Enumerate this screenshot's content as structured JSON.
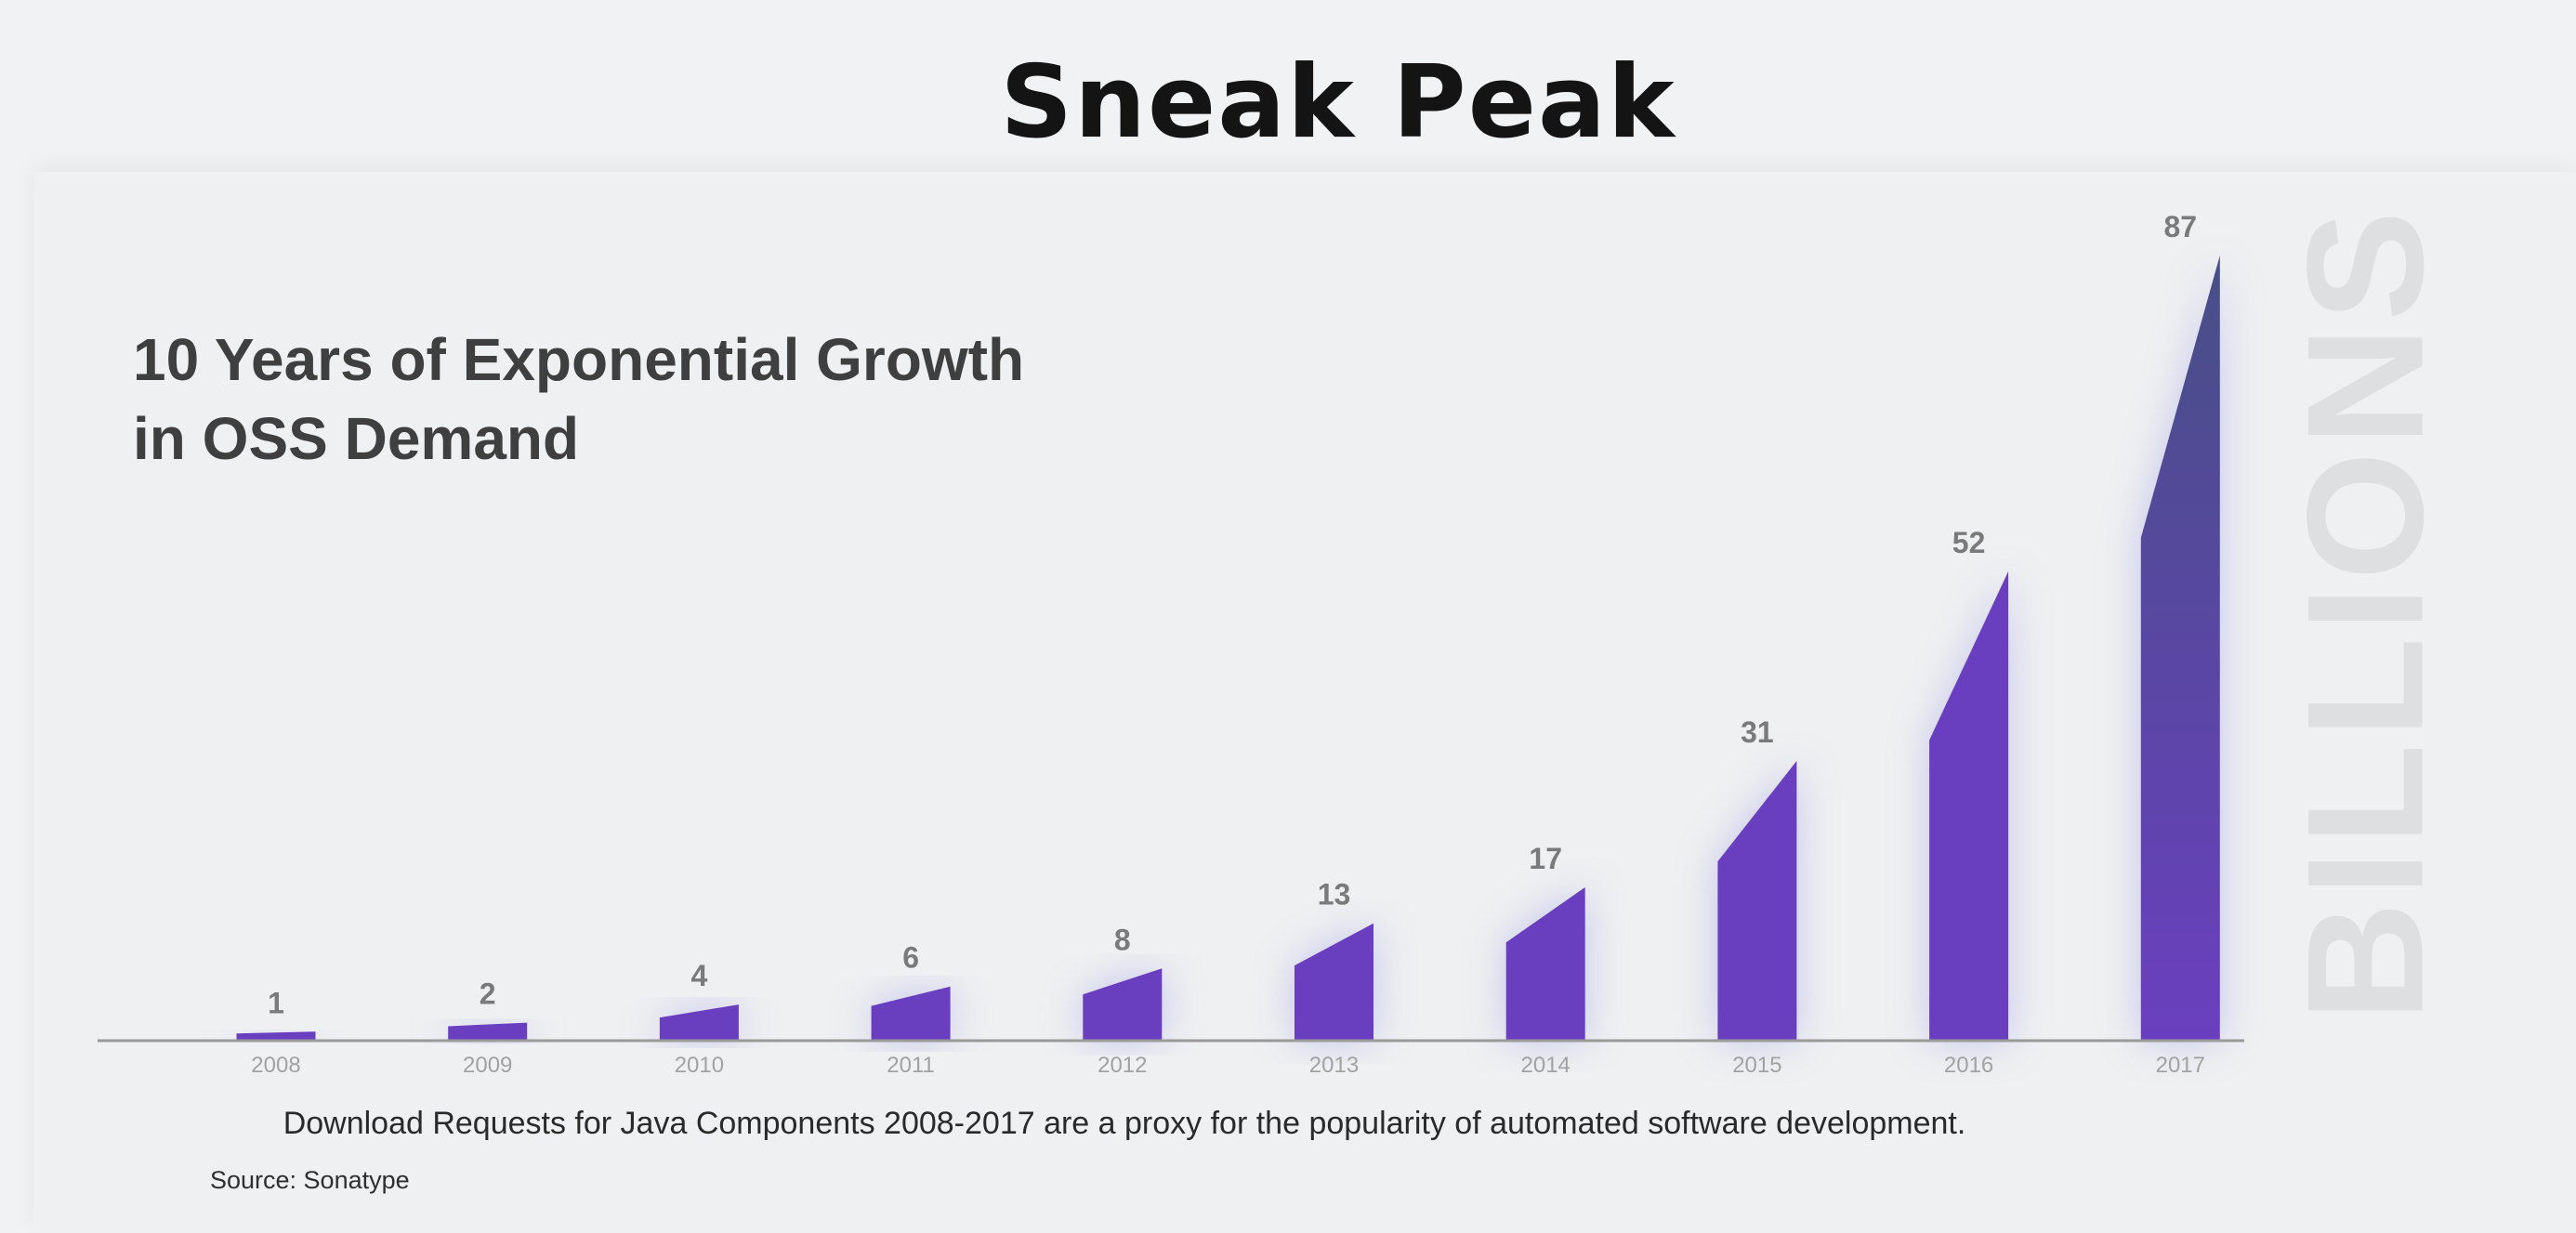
{
  "slide": {
    "title": "Sneak Peak"
  },
  "chart_data": {
    "type": "bar",
    "title": "10 Years of Exponential Growth in OSS Demand",
    "title_lines": [
      "10 Years of Exponential Growth",
      "in OSS Demand"
    ],
    "unit_label": "BILLIONS",
    "categories": [
      "2008",
      "2009",
      "2010",
      "2011",
      "2012",
      "2013",
      "2014",
      "2015",
      "2016",
      "2017"
    ],
    "values": [
      1,
      2,
      4,
      6,
      8,
      13,
      17,
      31,
      52,
      87
    ],
    "ylim": [
      0,
      87
    ],
    "xlabel": "",
    "ylabel": "BILLIONS",
    "grid": false,
    "legend": "none",
    "caption": "Download Requests for Java Components 2008-2017 are a proxy for the popularity of automated software development.",
    "source": "Source: Sonatype",
    "colors": {
      "bar": "#6a3fbf",
      "bar_top": "#484f86",
      "glow": "#b6b7ea",
      "axis": "#9a9a9a",
      "value_label": "#7a7a7a",
      "tick_label": "#a2a2a2"
    }
  }
}
